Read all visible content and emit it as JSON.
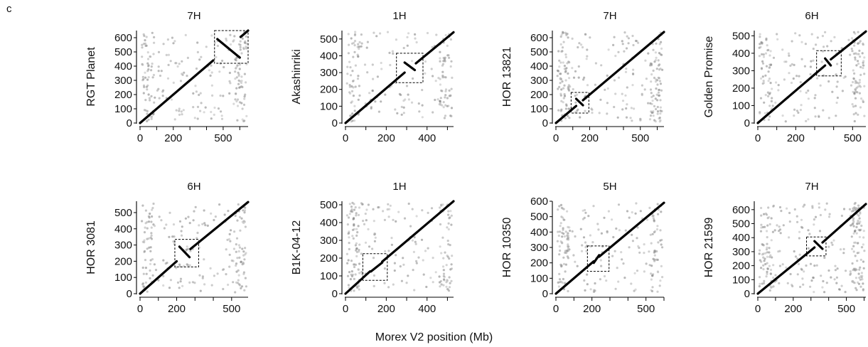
{
  "figure": {
    "panel_letter": "c",
    "xlabel": "Morex V2 position (Mb)"
  },
  "chart_data": [
    {
      "type": "scatter",
      "title": "7H",
      "ylabel": "RGT Planet",
      "xlim": [
        0,
        650
      ],
      "ylim": [
        0,
        650
      ],
      "xticks": [
        0,
        200,
        500
      ],
      "yticks": [
        0,
        100,
        200,
        300,
        400,
        500,
        600
      ],
      "segments": [
        {
          "x": [
            0,
            440
          ],
          "y": [
            0,
            440
          ]
        },
        {
          "x": [
            465,
            600
          ],
          "y": [
            590,
            460
          ]
        },
        {
          "x": [
            605,
            650
          ],
          "y": [
            605,
            650
          ]
        }
      ],
      "boxes": [
        {
          "x": [
            448,
            650
          ],
          "y": [
            420,
            650
          ]
        }
      ],
      "noise_seed": 11,
      "noise_count": 240
    },
    {
      "type": "scatter",
      "title": "1H",
      "ylabel": "Akashinriki",
      "xlim": [
        0,
        530
      ],
      "ylim": [
        0,
        550
      ],
      "xticks": [
        0,
        200,
        400
      ],
      "yticks": [
        0,
        100,
        200,
        300,
        400,
        500
      ],
      "segments": [
        {
          "x": [
            0,
            290
          ],
          "y": [
            0,
            300
          ]
        },
        {
          "x": [
            290,
            340
          ],
          "y": [
            360,
            315
          ]
        },
        {
          "x": [
            345,
            530
          ],
          "y": [
            355,
            540
          ]
        }
      ],
      "boxes": [
        {
          "x": [
            250,
            380
          ],
          "y": [
            240,
            415
          ]
        }
      ],
      "noise_seed": 23,
      "noise_count": 200
    },
    {
      "type": "scatter",
      "title": "7H",
      "ylabel": "HOR 13821",
      "xlim": [
        0,
        640
      ],
      "ylim": [
        0,
        650
      ],
      "xticks": [
        0,
        200,
        500
      ],
      "yticks": [
        0,
        100,
        200,
        300,
        400,
        500,
        600
      ],
      "segments": [
        {
          "x": [
            0,
            120
          ],
          "y": [
            0,
            120
          ]
        },
        {
          "x": [
            120,
            160
          ],
          "y": [
            170,
            125
          ]
        },
        {
          "x": [
            160,
            640
          ],
          "y": [
            160,
            640
          ]
        }
      ],
      "boxes": [
        {
          "x": [
            90,
            195
          ],
          "y": [
            70,
            215
          ]
        }
      ],
      "noise_seed": 37,
      "noise_count": 260
    },
    {
      "type": "scatter",
      "title": "6H",
      "ylabel": "Golden Promise",
      "xlim": [
        0,
        570
      ],
      "ylim": [
        0,
        530
      ],
      "xticks": [
        0,
        200,
        500
      ],
      "yticks": [
        0,
        100,
        200,
        300,
        400,
        500
      ],
      "segments": [
        {
          "x": [
            0,
            355
          ],
          "y": [
            0,
            330
          ]
        },
        {
          "x": [
            355,
            385
          ],
          "y": [
            370,
            330
          ]
        },
        {
          "x": [
            385,
            570
          ],
          "y": [
            365,
            525
          ]
        }
      ],
      "boxes": [
        {
          "x": [
            310,
            440
          ],
          "y": [
            270,
            415
          ]
        }
      ],
      "noise_seed": 41,
      "noise_count": 230
    },
    {
      "type": "scatter",
      "title": "6H",
      "ylabel": "HOR 3081",
      "xlim": [
        0,
        590
      ],
      "ylim": [
        0,
        570
      ],
      "xticks": [
        0,
        200,
        500
      ],
      "yticks": [
        0,
        100,
        200,
        300,
        400,
        500
      ],
      "segments": [
        {
          "x": [
            0,
            200
          ],
          "y": [
            0,
            200
          ]
        },
        {
          "x": [
            215,
            270
          ],
          "y": [
            290,
            225
          ]
        },
        {
          "x": [
            275,
            590
          ],
          "y": [
            275,
            565
          ]
        }
      ],
      "boxes": [
        {
          "x": [
            190,
            320
          ],
          "y": [
            165,
            335
          ]
        }
      ],
      "noise_seed": 53,
      "noise_count": 220
    },
    {
      "type": "scatter",
      "title": "1H",
      "ylabel": "B1K-04-12",
      "xlim": [
        0,
        530
      ],
      "ylim": [
        0,
        520
      ],
      "xticks": [
        0,
        200,
        400
      ],
      "yticks": [
        0,
        100,
        200,
        300,
        400,
        500
      ],
      "segments": [
        {
          "x": [
            0,
            120
          ],
          "y": [
            0,
            125
          ]
        },
        {
          "x": [
            125,
            180
          ],
          "y": [
            125,
            175
          ]
        },
        {
          "x": [
            180,
            530
          ],
          "y": [
            180,
            520
          ]
        }
      ],
      "boxes": [
        {
          "x": [
            85,
            205
          ],
          "y": [
            75,
            225
          ]
        }
      ],
      "noise_seed": 67,
      "noise_count": 230
    },
    {
      "type": "scatter",
      "title": "5H",
      "ylabel": "HOR 10350",
      "xlim": [
        0,
        600
      ],
      "ylim": [
        0,
        600
      ],
      "xticks": [
        0,
        200,
        500
      ],
      "yticks": [
        0,
        100,
        200,
        300,
        400,
        500,
        600
      ],
      "segments": [
        {
          "x": [
            0,
            210
          ],
          "y": [
            0,
            210
          ]
        },
        {
          "x": [
            210,
            240
          ],
          "y": [
            200,
            250
          ]
        },
        {
          "x": [
            240,
            600
          ],
          "y": [
            240,
            590
          ]
        }
      ],
      "boxes": [
        {
          "x": [
            175,
            295
          ],
          "y": [
            145,
            310
          ]
        }
      ],
      "noise_seed": 79,
      "noise_count": 220
    },
    {
      "type": "scatter",
      "title": "7H",
      "ylabel": "HOR 21599",
      "xlim": [
        0,
        610
      ],
      "ylim": [
        0,
        660
      ],
      "xticks": [
        0,
        200,
        500
      ],
      "yticks": [
        0,
        100,
        200,
        300,
        400,
        500,
        600
      ],
      "segments": [
        {
          "x": [
            0,
            320
          ],
          "y": [
            0,
            330
          ]
        },
        {
          "x": [
            320,
            365
          ],
          "y": [
            375,
            320
          ]
        },
        {
          "x": [
            365,
            610
          ],
          "y": [
            365,
            640
          ]
        }
      ],
      "boxes": [
        {
          "x": [
            275,
            385
          ],
          "y": [
            270,
            405
          ]
        }
      ],
      "noise_seed": 91,
      "noise_count": 280
    }
  ]
}
